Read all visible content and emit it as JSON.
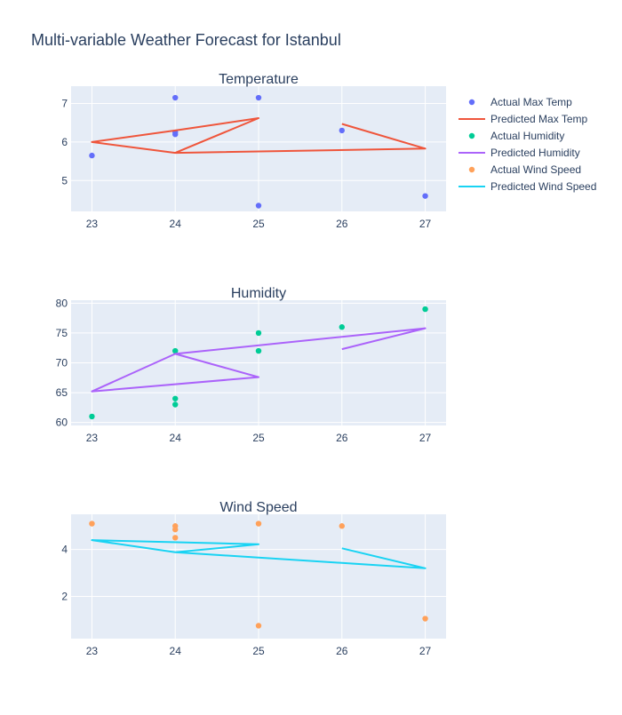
{
  "title": "Multi-variable Weather Forecast for Istanbul",
  "legend": {
    "placement": "right",
    "items": [
      {
        "label": "Actual Max Temp",
        "kind": "marker",
        "color": "#636efa"
      },
      {
        "label": "Predicted Max Temp",
        "kind": "line",
        "color": "#ef553b"
      },
      {
        "label": "Actual Humidity",
        "kind": "marker",
        "color": "#00cc96"
      },
      {
        "label": "Predicted Humidity",
        "kind": "line",
        "color": "#ab63fa"
      },
      {
        "label": "Actual Wind Speed",
        "kind": "marker",
        "color": "#ffa15a"
      },
      {
        "label": "Predicted Wind Speed",
        "kind": "line",
        "color": "#19d3f3"
      }
    ]
  },
  "chart_data": [
    {
      "type": "scatter",
      "title": "Temperature",
      "xlim": [
        22.75,
        27.25
      ],
      "ylim": [
        4.2,
        7.45
      ],
      "xticks": [
        23,
        24,
        25,
        26,
        27
      ],
      "yticks": [
        5,
        6,
        7
      ],
      "grid": true,
      "series": [
        {
          "name": "Actual Max Temp",
          "mode": "markers",
          "color": "#636efa",
          "x": [
            23,
            24,
            24,
            24,
            25,
            25,
            26,
            27
          ],
          "y": [
            5.65,
            7.15,
            6.25,
            6.2,
            7.15,
            4.35,
            6.3,
            4.6
          ]
        },
        {
          "name": "Predicted Max Temp",
          "mode": "lines",
          "color": "#ef553b",
          "x": [
            26,
            27,
            24,
            23,
            24,
            25,
            24
          ],
          "y": [
            6.47,
            5.83,
            5.72,
            6.0,
            6.3,
            6.62,
            5.72
          ]
        }
      ]
    },
    {
      "type": "scatter",
      "title": "Humidity",
      "xlim": [
        22.75,
        27.25
      ],
      "ylim": [
        59.5,
        80.5
      ],
      "xticks": [
        23,
        24,
        25,
        26,
        27
      ],
      "yticks": [
        60,
        65,
        70,
        75,
        80
      ],
      "grid": true,
      "series": [
        {
          "name": "Actual Humidity",
          "mode": "markers",
          "color": "#00cc96",
          "x": [
            23,
            24,
            24,
            24,
            25,
            25,
            26,
            27
          ],
          "y": [
            61,
            72,
            64,
            63,
            75,
            72,
            76,
            79
          ]
        },
        {
          "name": "Predicted Humidity",
          "mode": "lines",
          "color": "#ab63fa",
          "x": [
            26,
            27,
            24,
            25,
            23,
            24,
            27
          ],
          "y": [
            72.3,
            75.8,
            71.5,
            67.6,
            65.2,
            71.5,
            75.8
          ]
        }
      ]
    },
    {
      "type": "scatter",
      "title": "Wind Speed",
      "xlim": [
        22.75,
        27.25
      ],
      "ylim": [
        0.2,
        5.5
      ],
      "xticks": [
        23,
        24,
        25,
        26,
        27
      ],
      "yticks": [
        2,
        4
      ],
      "grid": true,
      "series": [
        {
          "name": "Actual Wind Speed",
          "mode": "markers",
          "color": "#ffa15a",
          "x": [
            23,
            24,
            24,
            24,
            25,
            25,
            26,
            27
          ],
          "y": [
            5.1,
            5.0,
            4.85,
            4.5,
            5.1,
            0.75,
            5.0,
            1.05
          ]
        },
        {
          "name": "Predicted Wind Speed",
          "mode": "lines",
          "color": "#19d3f3",
          "x": [
            26,
            27,
            24,
            23,
            25,
            24
          ],
          "y": [
            4.05,
            3.2,
            3.88,
            4.4,
            4.22,
            3.88
          ]
        }
      ]
    }
  ]
}
